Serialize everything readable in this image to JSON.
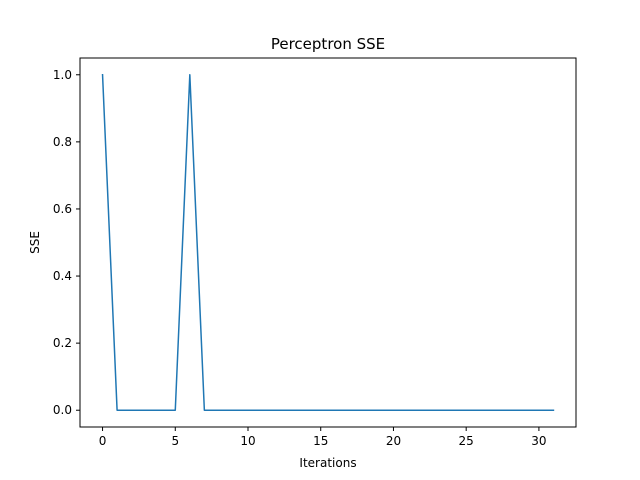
{
  "chart_data": {
    "type": "line",
    "title": "Perceptron SSE",
    "xlabel": "Iterations",
    "ylabel": "SSE",
    "xlim": [
      -1.55,
      32.55
    ],
    "ylim": [
      -0.05,
      1.05
    ],
    "xticks": [
      0,
      5,
      10,
      15,
      20,
      25,
      30
    ],
    "xtick_labels": [
      "0",
      "5",
      "10",
      "15",
      "20",
      "25",
      "30"
    ],
    "yticks": [
      0.0,
      0.2,
      0.4,
      0.6,
      0.8,
      1.0
    ],
    "ytick_labels": [
      "0.0",
      "0.2",
      "0.4",
      "0.6",
      "0.8",
      "1.0"
    ],
    "grid": false,
    "series": [
      {
        "color": "#1f77b4",
        "x": [
          0,
          1,
          2,
          3,
          4,
          5,
          6,
          7,
          8,
          9,
          10,
          11,
          12,
          13,
          14,
          15,
          16,
          17,
          18,
          19,
          20,
          21,
          22,
          23,
          24,
          25,
          26,
          27,
          28,
          29,
          30,
          31
        ],
        "y": [
          1,
          0,
          0,
          0,
          0,
          0,
          1,
          0,
          0,
          0,
          0,
          0,
          0,
          0,
          0,
          0,
          0,
          0,
          0,
          0,
          0,
          0,
          0,
          0,
          0,
          0,
          0,
          0,
          0,
          0,
          0,
          0
        ]
      }
    ]
  }
}
